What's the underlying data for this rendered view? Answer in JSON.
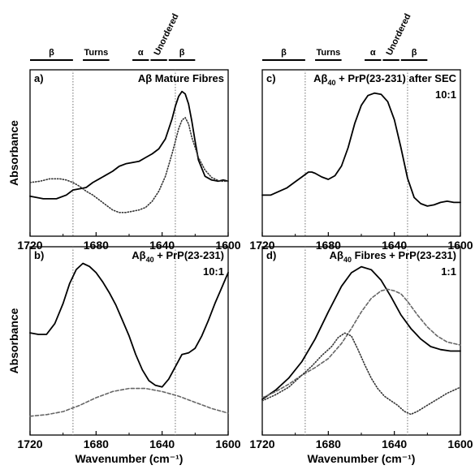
{
  "chart_data": [
    {
      "type": "line",
      "panel": "a)",
      "title_main": "Aβ Mature Fibres",
      "title_sub": "",
      "title_tail": "",
      "ratio": "",
      "ylabel": "Absorbance",
      "xlabel": "",
      "xlim": [
        1720,
        1600
      ],
      "ticks": [
        "1720",
        "1680",
        "1640",
        "1600"
      ],
      "y_ticks_shown": false,
      "series": [
        {
          "style": "solid",
          "x": [
            1720,
            1712,
            1704,
            1698,
            1694,
            1690,
            1686,
            1682,
            1678,
            1674,
            1670,
            1666,
            1662,
            1658,
            1654,
            1650,
            1646,
            1642,
            1638,
            1634,
            1632,
            1630,
            1628,
            1626,
            1624,
            1622,
            1620,
            1618,
            1614,
            1610,
            1606,
            1603,
            1600
          ],
          "y": [
            0.16,
            0.14,
            0.14,
            0.17,
            0.21,
            0.22,
            0.23,
            0.27,
            0.3,
            0.33,
            0.36,
            0.4,
            0.42,
            0.43,
            0.44,
            0.47,
            0.5,
            0.54,
            0.62,
            0.78,
            0.88,
            0.96,
            1.0,
            0.98,
            0.9,
            0.76,
            0.6,
            0.45,
            0.32,
            0.29,
            0.28,
            0.29,
            0.28
          ]
        },
        {
          "style": "dotted",
          "x": [
            1720,
            1714,
            1708,
            1702,
            1698,
            1694,
            1690,
            1686,
            1682,
            1678,
            1674,
            1670,
            1666,
            1662,
            1658,
            1654,
            1650,
            1646,
            1642,
            1638,
            1634,
            1630,
            1628,
            1626,
            1624,
            1622,
            1618,
            1614,
            1610,
            1605,
            1600
          ],
          "y": [
            0.27,
            0.28,
            0.3,
            0.3,
            0.29,
            0.27,
            0.24,
            0.2,
            0.17,
            0.13,
            0.09,
            0.05,
            0.03,
            0.03,
            0.04,
            0.05,
            0.07,
            0.12,
            0.2,
            0.32,
            0.5,
            0.7,
            0.77,
            0.79,
            0.74,
            0.63,
            0.47,
            0.37,
            0.31,
            0.28,
            0.28
          ]
        }
      ]
    },
    {
      "type": "line",
      "panel": "b)",
      "title_main": "Aβ",
      "title_sub": "40",
      "title_tail": " + PrP(23-231)",
      "ratio": "10:1",
      "ylabel": "Absorbance",
      "xlabel": "Wavenumber (cm⁻¹)",
      "xlim": [
        1720,
        1600
      ],
      "ticks": [
        "1720",
        "1680",
        "1640",
        "1600"
      ],
      "y_ticks_shown": false,
      "series": [
        {
          "style": "solid",
          "x": [
            1720,
            1715,
            1710,
            1705,
            1700,
            1696,
            1692,
            1688,
            1684,
            1680,
            1676,
            1672,
            1668,
            1664,
            1660,
            1656,
            1652,
            1648,
            1644,
            1640,
            1636,
            1632,
            1628,
            1624,
            1620,
            1616,
            1612,
            1608,
            1604,
            1600
          ],
          "y": [
            0.54,
            0.53,
            0.53,
            0.6,
            0.73,
            0.86,
            0.95,
            0.99,
            0.97,
            0.93,
            0.87,
            0.8,
            0.72,
            0.62,
            0.52,
            0.4,
            0.3,
            0.23,
            0.2,
            0.19,
            0.24,
            0.32,
            0.4,
            0.41,
            0.44,
            0.52,
            0.62,
            0.73,
            0.83,
            0.93
          ]
        },
        {
          "style": "dashed",
          "x": [
            1720,
            1710,
            1700,
            1690,
            1680,
            1670,
            1660,
            1650,
            1640,
            1630,
            1620,
            1610,
            1600
          ],
          "y": [
            0.0,
            0.01,
            0.03,
            0.07,
            0.12,
            0.16,
            0.18,
            0.18,
            0.16,
            0.13,
            0.09,
            0.05,
            0.02
          ]
        }
      ]
    },
    {
      "type": "line",
      "panel": "c)",
      "title_main": "Aβ",
      "title_sub": "40",
      "title_tail": " + PrP(23-231) after SEC",
      "ratio": "10:1",
      "ylabel": "",
      "xlabel": "",
      "xlim": [
        1720,
        1600
      ],
      "ticks": [
        "1720",
        "1680",
        "1640",
        "1600"
      ],
      "y_ticks_shown": false,
      "series": [
        {
          "style": "solid",
          "x": [
            1720,
            1715,
            1710,
            1705,
            1700,
            1696,
            1692,
            1690,
            1688,
            1684,
            1680,
            1676,
            1672,
            1668,
            1664,
            1660,
            1656,
            1652,
            1648,
            1644,
            1640,
            1636,
            1632,
            1628,
            1624,
            1620,
            1616,
            1612,
            1608,
            1604,
            1600
          ],
          "y": [
            0.16,
            0.16,
            0.19,
            0.22,
            0.27,
            0.31,
            0.35,
            0.35,
            0.34,
            0.31,
            0.29,
            0.32,
            0.4,
            0.55,
            0.75,
            0.9,
            0.98,
            1.0,
            0.99,
            0.93,
            0.78,
            0.55,
            0.3,
            0.14,
            0.09,
            0.07,
            0.08,
            0.1,
            0.11,
            0.1,
            0.1
          ]
        }
      ]
    },
    {
      "type": "line",
      "panel": "d)",
      "title_main": "Aβ",
      "title_sub": "40",
      "title_tail": " Fibres + PrP(23-231)",
      "ratio": "1:1",
      "ylabel": "",
      "xlabel": "Wavenumber (cm⁻¹)",
      "xlim": [
        1720,
        1600
      ],
      "ticks": [
        "1720",
        "1680",
        "1640",
        "1600"
      ],
      "y_ticks_shown": false,
      "series": [
        {
          "style": "solid",
          "x": [
            1720,
            1712,
            1704,
            1696,
            1688,
            1680,
            1672,
            1666,
            1660,
            1654,
            1648,
            1642,
            1636,
            1630,
            1624,
            1618,
            1612,
            1606,
            1600
          ],
          "y": [
            0.1,
            0.16,
            0.24,
            0.35,
            0.5,
            0.68,
            0.85,
            0.94,
            0.98,
            0.96,
            0.89,
            0.78,
            0.66,
            0.57,
            0.5,
            0.45,
            0.43,
            0.42,
            0.42
          ]
        },
        {
          "style": "dashed",
          "x": [
            1720,
            1712,
            1704,
            1696,
            1688,
            1680,
            1672,
            1666,
            1660,
            1654,
            1648,
            1644,
            1640,
            1636,
            1632,
            1626,
            1620,
            1614,
            1608,
            1600
          ],
          "y": [
            0.11,
            0.15,
            0.2,
            0.26,
            0.31,
            0.37,
            0.47,
            0.57,
            0.68,
            0.77,
            0.82,
            0.83,
            0.82,
            0.8,
            0.75,
            0.66,
            0.58,
            0.52,
            0.48,
            0.46
          ]
        },
        {
          "style": "dotted",
          "x": [
            1720,
            1712,
            1704,
            1696,
            1690,
            1684,
            1678,
            1674,
            1670,
            1666,
            1662,
            1658,
            1654,
            1650,
            1646,
            1642,
            1638,
            1634,
            1630,
            1626,
            1620,
            1614,
            1608,
            1600
          ],
          "y": [
            0.09,
            0.13,
            0.18,
            0.26,
            0.32,
            0.39,
            0.45,
            0.51,
            0.54,
            0.52,
            0.43,
            0.33,
            0.24,
            0.17,
            0.12,
            0.09,
            0.06,
            0.02,
            0.0,
            0.02,
            0.06,
            0.1,
            0.14,
            0.18
          ]
        }
      ]
    }
  ],
  "bands": [
    {
      "label": "β",
      "x0": 1720,
      "x1": 1694,
      "rotated": false
    },
    {
      "label": "Turns",
      "x0": 1688,
      "x1": 1672,
      "rotated": false
    },
    {
      "label": "α",
      "x0": 1658,
      "x1": 1648,
      "rotated": false
    },
    {
      "label": "Unordered",
      "x0": 1647,
      "x1": 1637,
      "rotated": true
    },
    {
      "label": "β",
      "x0": 1636,
      "x1": 1620,
      "rotated": false
    }
  ],
  "reference_lines_x": [
    1694,
    1632
  ]
}
